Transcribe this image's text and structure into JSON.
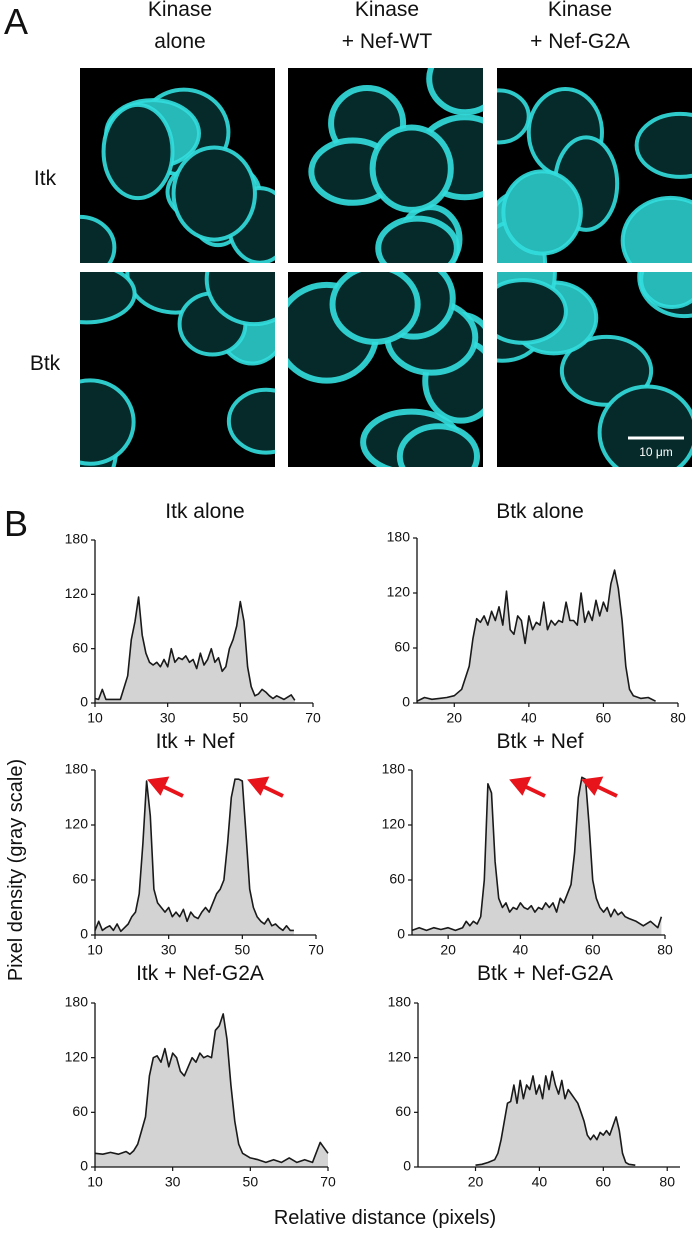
{
  "panel_labels": [
    "A",
    "B"
  ],
  "image_panel": {
    "columns": [
      [
        "Kinase",
        "alone"
      ],
      [
        "Kinase",
        "+ Nef-WT"
      ],
      [
        "Kinase",
        "+ Nef-G2A"
      ]
    ],
    "rows": [
      "Itk",
      "Btk"
    ],
    "scale_bar": "10 μm"
  },
  "y_label": "Pixel density (gray scale)",
  "x_label": "Relative distance (pixels)",
  "chart_data": [
    {
      "type": "area",
      "title": "Itk alone",
      "fill": "#d3d3d3",
      "color": "#1a1a1a",
      "xlim": [
        10,
        70
      ],
      "xticks": [
        10,
        30,
        50,
        70
      ],
      "ylim": [
        0,
        180
      ],
      "yticks": [
        0,
        60,
        120,
        180
      ],
      "x": [
        10,
        11,
        12,
        13,
        15,
        17,
        19,
        20,
        21,
        22,
        23,
        24,
        25,
        26,
        27,
        28,
        29,
        30,
        31,
        32,
        33,
        34,
        35,
        36,
        37,
        38,
        39,
        40,
        41,
        42,
        43,
        44,
        45,
        46,
        47,
        48,
        49,
        50,
        51,
        52,
        53,
        54,
        55,
        56,
        57,
        58,
        59,
        60,
        62,
        64,
        65
      ],
      "values": [
        5,
        4,
        15,
        4,
        4,
        4,
        30,
        70,
        90,
        117,
        75,
        55,
        45,
        42,
        45,
        40,
        48,
        40,
        60,
        45,
        50,
        48,
        52,
        45,
        48,
        38,
        55,
        42,
        48,
        60,
        45,
        50,
        35,
        40,
        60,
        70,
        85,
        112,
        90,
        40,
        18,
        8,
        10,
        15,
        12,
        8,
        5,
        8,
        4,
        9,
        3
      ]
    },
    {
      "type": "area",
      "title": "Btk alone",
      "fill": "#d3d3d3",
      "color": "#1a1a1a",
      "xlim": [
        10,
        80
      ],
      "xticks": [
        20,
        40,
        60,
        80
      ],
      "ylim": [
        0,
        180
      ],
      "yticks": [
        0,
        60,
        120,
        180
      ],
      "x": [
        10,
        12,
        14,
        16,
        18,
        20,
        22,
        24,
        25,
        26,
        27,
        28,
        29,
        30,
        31,
        32,
        33,
        34,
        35,
        36,
        37,
        38,
        39,
        40,
        41,
        42,
        43,
        44,
        45,
        46,
        47,
        48,
        49,
        50,
        51,
        52,
        53,
        54,
        55,
        56,
        57,
        58,
        59,
        60,
        61,
        62,
        63,
        64,
        65,
        66,
        67,
        68,
        70,
        72,
        74
      ],
      "values": [
        2,
        6,
        4,
        5,
        6,
        8,
        15,
        40,
        70,
        92,
        88,
        95,
        85,
        100,
        90,
        105,
        85,
        122,
        80,
        75,
        95,
        90,
        65,
        95,
        80,
        88,
        85,
        110,
        80,
        90,
        85,
        90,
        88,
        110,
        90,
        90,
        85,
        120,
        88,
        100,
        90,
        112,
        95,
        110,
        100,
        130,
        145,
        125,
        90,
        40,
        15,
        8,
        5,
        6,
        2
      ]
    },
    {
      "type": "area",
      "title": "Itk + Nef",
      "fill": "#d3d3d3",
      "color": "#1a1a1a",
      "xlim": [
        10,
        70
      ],
      "xticks": [
        10,
        30,
        50,
        70
      ],
      "ylim": [
        0,
        180
      ],
      "yticks": [
        0,
        60,
        120,
        180
      ],
      "x": [
        10,
        11,
        12,
        13,
        14,
        15,
        16,
        17,
        18,
        19,
        20,
        21,
        22,
        23,
        24,
        25,
        26,
        27,
        28,
        29,
        30,
        31,
        32,
        33,
        34,
        35,
        36,
        37,
        38,
        39,
        40,
        41,
        42,
        43,
        44,
        45,
        46,
        47,
        48,
        49,
        50,
        51,
        52,
        53,
        54,
        55,
        56,
        57,
        58,
        59,
        60,
        61,
        62,
        63,
        64
      ],
      "values": [
        5,
        15,
        5,
        8,
        10,
        5,
        12,
        4,
        8,
        12,
        20,
        25,
        45,
        100,
        168,
        130,
        50,
        35,
        30,
        25,
        30,
        20,
        25,
        20,
        28,
        15,
        25,
        20,
        18,
        25,
        30,
        25,
        35,
        45,
        50,
        60,
        100,
        150,
        170,
        170,
        168,
        110,
        50,
        30,
        20,
        15,
        12,
        18,
        10,
        12,
        8,
        5,
        10,
        5,
        5
      ]
    },
    {
      "type": "area",
      "title": "Btk + Nef",
      "fill": "#d3d3d3",
      "color": "#1a1a1a",
      "xlim": [
        10,
        80
      ],
      "xticks": [
        20,
        40,
        60,
        80
      ],
      "ylim": [
        0,
        180
      ],
      "yticks": [
        0,
        60,
        120,
        180
      ],
      "x": [
        10,
        12,
        14,
        16,
        18,
        20,
        22,
        24,
        25,
        26,
        27,
        28,
        29,
        30,
        31,
        32,
        33,
        34,
        35,
        36,
        37,
        38,
        39,
        40,
        41,
        42,
        43,
        44,
        45,
        46,
        47,
        48,
        49,
        50,
        51,
        52,
        53,
        54,
        55,
        56,
        57,
        58,
        59,
        60,
        61,
        62,
        63,
        64,
        65,
        66,
        67,
        68,
        69,
        70,
        72,
        74,
        76,
        78,
        79
      ],
      "values": [
        5,
        8,
        5,
        8,
        6,
        8,
        5,
        8,
        15,
        10,
        15,
        12,
        20,
        60,
        165,
        155,
        80,
        40,
        30,
        35,
        25,
        30,
        28,
        35,
        30,
        28,
        32,
        25,
        30,
        28,
        35,
        30,
        35,
        25,
        40,
        35,
        45,
        55,
        90,
        150,
        172,
        170,
        120,
        60,
        40,
        30,
        25,
        30,
        20,
        28,
        22,
        25,
        20,
        18,
        15,
        10,
        15,
        8,
        20
      ]
    },
    {
      "type": "area",
      "title": "Itk + Nef-G2A",
      "fill": "#d3d3d3",
      "color": "#1a1a1a",
      "xlim": [
        10,
        70
      ],
      "xticks": [
        10,
        30,
        50,
        70
      ],
      "ylim": [
        0,
        180
      ],
      "yticks": [
        0,
        60,
        120,
        180
      ],
      "x": [
        10,
        12,
        14,
        16,
        18,
        19,
        20,
        21,
        22,
        23,
        24,
        25,
        26,
        27,
        28,
        29,
        30,
        31,
        32,
        33,
        34,
        35,
        36,
        37,
        38,
        39,
        40,
        41,
        42,
        43,
        44,
        45,
        46,
        47,
        48,
        50,
        52,
        54,
        56,
        58,
        60,
        62,
        64,
        66,
        68,
        70
      ],
      "values": [
        15,
        14,
        16,
        14,
        17,
        14,
        18,
        25,
        40,
        55,
        100,
        120,
        122,
        115,
        130,
        110,
        125,
        120,
        105,
        100,
        110,
        120,
        115,
        125,
        120,
        122,
        120,
        150,
        155,
        168,
        140,
        90,
        50,
        25,
        15,
        10,
        8,
        5,
        8,
        5,
        10,
        5,
        8,
        5,
        27,
        15
      ]
    },
    {
      "type": "area",
      "title": "Btk + Nef-G2A",
      "fill": "#d3d3d3",
      "color": "#1a1a1a",
      "xlim": [
        2,
        84
      ],
      "xticks": [
        20,
        40,
        60,
        80
      ],
      "ylim": [
        0,
        180
      ],
      "yticks": [
        0,
        60,
        120,
        180
      ],
      "x": [
        20,
        22,
        24,
        26,
        27,
        28,
        29,
        30,
        31,
        32,
        33,
        34,
        35,
        36,
        37,
        38,
        39,
        40,
        41,
        42,
        43,
        44,
        45,
        46,
        47,
        48,
        49,
        50,
        51,
        52,
        53,
        54,
        55,
        56,
        57,
        58,
        59,
        60,
        61,
        62,
        63,
        64,
        65,
        66,
        67,
        68,
        70
      ],
      "values": [
        2,
        3,
        5,
        8,
        15,
        30,
        50,
        70,
        72,
        90,
        70,
        95,
        75,
        90,
        85,
        100,
        80,
        90,
        75,
        100,
        85,
        105,
        90,
        80,
        95,
        75,
        85,
        80,
        75,
        70,
        60,
        50,
        35,
        30,
        35,
        30,
        38,
        35,
        40,
        35,
        45,
        55,
        40,
        15,
        5,
        3,
        2
      ]
    }
  ]
}
